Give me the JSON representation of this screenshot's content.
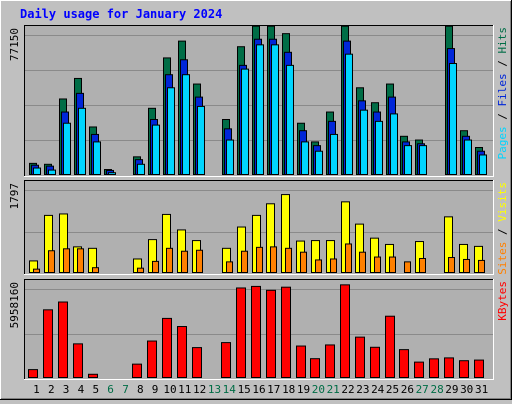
{
  "colors": {
    "background": "#c0c0c0",
    "plot_bg": "#b0b0b0",
    "hits": "#006d46",
    "files": "#0026d8",
    "pages": "#00d5ff",
    "visits": "#ffff00",
    "sites": "#ff8000",
    "kbytes": "#ff0000",
    "title": "#0000ff",
    "weekend_label": "#006d46",
    "weekday_label": "#000000"
  },
  "chart_data": {
    "type": "bar",
    "title": "Daily usage for January 2024",
    "x": [
      "1",
      "2",
      "3",
      "4",
      "5",
      "6",
      "7",
      "8",
      "9",
      "10",
      "11",
      "12",
      "13",
      "14",
      "15",
      "16",
      "17",
      "18",
      "19",
      "20",
      "21",
      "22",
      "23",
      "24",
      "25",
      "26",
      "27",
      "28",
      "29",
      "30",
      "31"
    ],
    "weekend_days": [
      "6",
      "7",
      "13",
      "14",
      "20",
      "21",
      "27",
      "28"
    ],
    "panels": [
      {
        "name": "hits-files-pages",
        "ymax_label": "77150",
        "ymax": 77150,
        "legend": [
          {
            "text": "Pages",
            "color": "#00d5ff"
          },
          {
            "text": "Files",
            "color": "#0026d8"
          },
          {
            "text": "Hits",
            "color": "#006d46"
          }
        ],
        "series": [
          {
            "name": "Hits",
            "values": [
              6500,
              6000,
              41000,
              52000,
              26000,
              3200,
              0,
              10000,
              36000,
              63000,
              72000,
              49000,
              0,
              30000,
              69000,
              80000,
              80000,
              76000,
              28000,
              18000,
              34000,
              80000,
              47000,
              39000,
              49000,
              21000,
              19000,
              0,
              80000,
              24000,
              15000
            ]
          },
          {
            "name": "Files",
            "values": [
              5500,
              5000,
              34000,
              44000,
              22000,
              2700,
              0,
              8500,
              30000,
              54000,
              62000,
              42000,
              0,
              25000,
              59000,
              73000,
              73000,
              66000,
              24000,
              16000,
              29000,
              72000,
              40000,
              34000,
              42000,
              18000,
              17000,
              0,
              68000,
              21000,
              13000
            ]
          },
          {
            "name": "Pages",
            "values": [
              4000,
              2900,
              28000,
              36000,
              18000,
              1500,
              0,
              6000,
              27000,
              47000,
              54000,
              37000,
              0,
              19000,
              57000,
              70000,
              70000,
              59000,
              18000,
              13000,
              22000,
              65000,
              35000,
              29000,
              33000,
              16000,
              16000,
              0,
              60000,
              19000,
              11000
            ]
          }
        ]
      },
      {
        "name": "visits-sites",
        "ymax_label": "1797",
        "ymax": 1797,
        "legend": [
          {
            "text": "Sites",
            "color": "#ff8000"
          },
          {
            "text": "Visits",
            "color": "#ffff00"
          }
        ],
        "series": [
          {
            "name": "Visits",
            "values": [
              260,
              1200,
              1230,
              550,
              520,
              0,
              0,
              300,
              700,
              1220,
              900,
              680,
              0,
              520,
              960,
              1200,
              1440,
              1630,
              670,
              680,
              680,
              1480,
              1020,
              730,
              600,
              0,
              660,
              0,
              1170,
              600,
              560
            ]
          },
          {
            "name": "Sites",
            "values": [
              90,
              470,
              510,
              510,
              120,
              0,
              0,
              110,
              250,
              520,
              460,
              480,
              0,
              240,
              460,
              540,
              550,
              520,
              440,
              280,
              300,
              610,
              440,
              340,
              340,
              240,
              310,
              0,
              330,
              290,
              270
            ]
          }
        ]
      },
      {
        "name": "kbytes",
        "ymax_label": "5958160",
        "ymax": 5958160,
        "legend": [
          {
            "text": "KBytes",
            "color": "#ff0000"
          }
        ],
        "series": [
          {
            "name": "KBytes",
            "values": [
              570000,
              4400000,
              4900000,
              2220000,
              270000,
              0,
              0,
              920000,
              2400000,
              3850000,
              3330000,
              1980000,
              0,
              2300000,
              5800000,
              5900000,
              5650000,
              5850000,
              2080000,
              1270000,
              2150000,
              6000000,
              2650000,
              2000000,
              3990000,
              1850000,
              1050000,
              1260000,
              1320000,
              1140000,
              1180000
            ]
          }
        ]
      }
    ]
  }
}
